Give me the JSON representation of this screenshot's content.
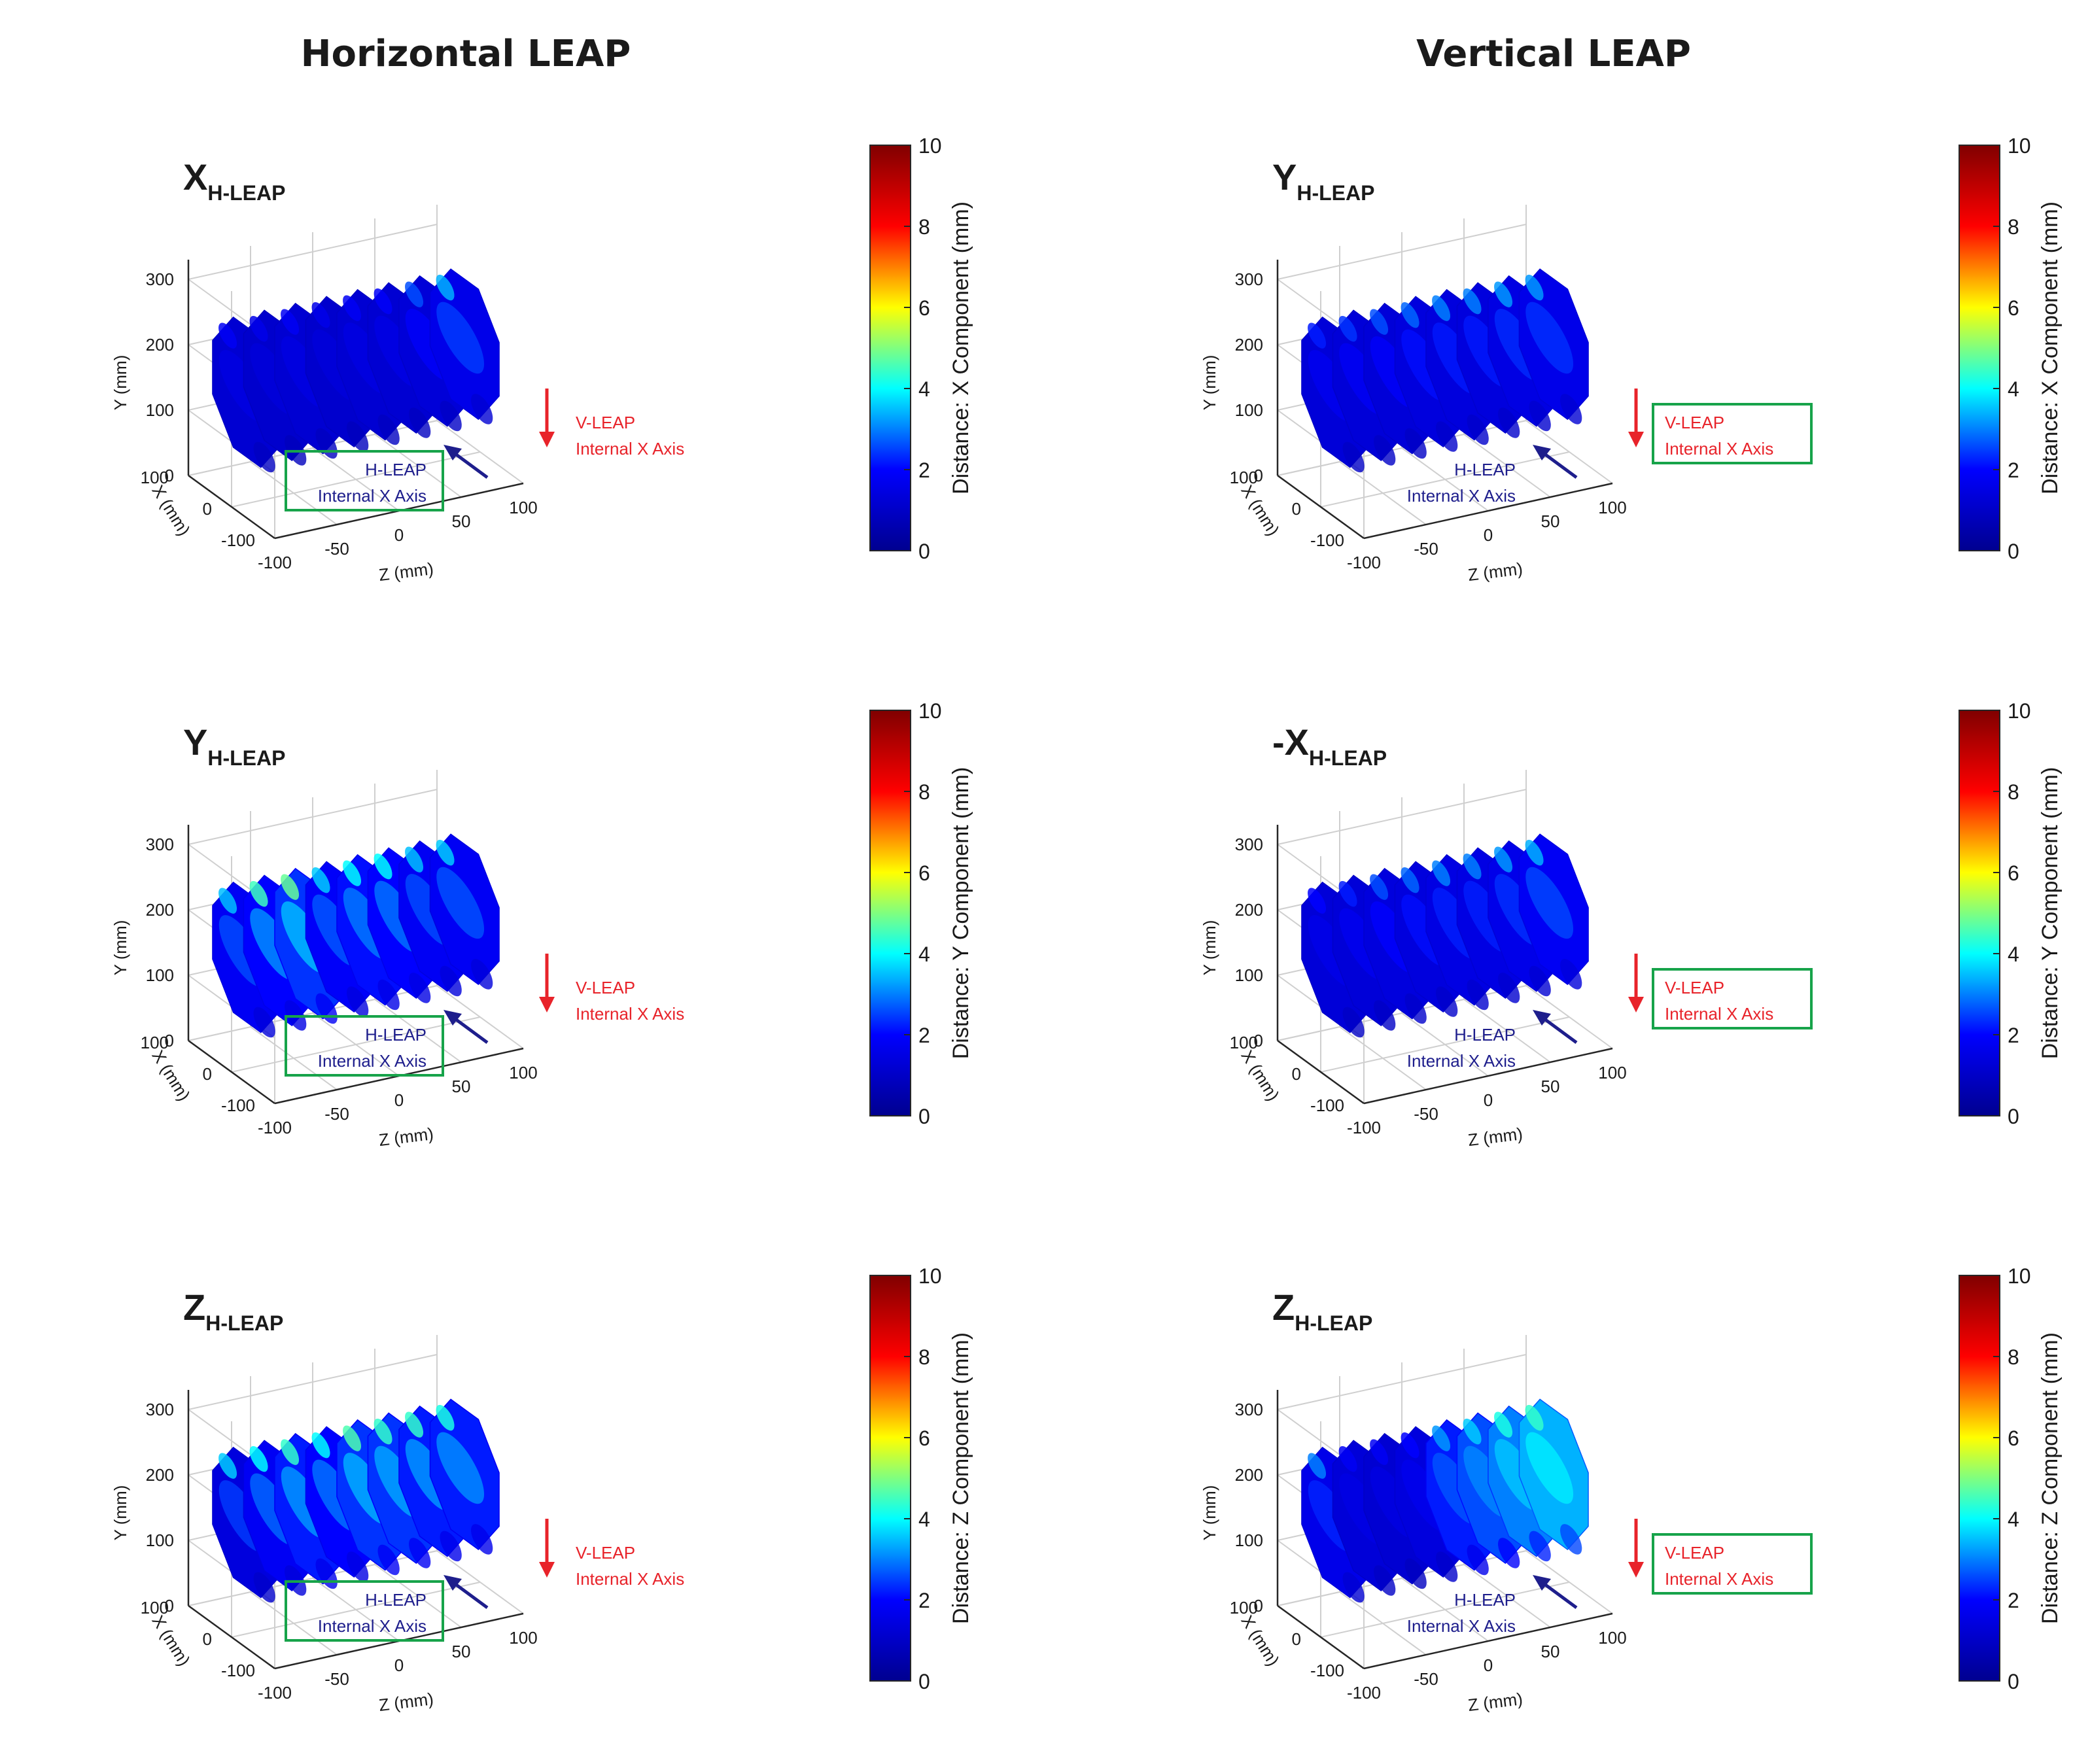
{
  "headings": {
    "left": "Horizontal LEAP",
    "right": "Vertical LEAP"
  },
  "colormap": {
    "name": "jet",
    "stops": [
      "#00008f",
      "#0000ff",
      "#00ffff",
      "#ffff00",
      "#ff0000",
      "#800000"
    ]
  },
  "chart_data": [
    {
      "type": "surface",
      "column": "Horizontal LEAP",
      "panel_label": {
        "main": "X",
        "sub": "H-LEAP"
      },
      "xlabel": "Z (mm)",
      "ylabel": "Y (mm)",
      "zlabel": "X (mm)",
      "z_ticks": [
        "-100",
        "-50",
        "0",
        "50",
        "100"
      ],
      "y_ticks": [
        "0",
        "100",
        "200",
        "300"
      ],
      "x_ticks": [
        "100",
        "0",
        "-100"
      ],
      "slices_at_z_mm": [
        -87.5,
        -62.5,
        -37.5,
        -12.5,
        12.5,
        37.5,
        62.5,
        87.5
      ],
      "slice_typical_distance_mm": [
        1.2,
        1.1,
        1.2,
        1.1,
        1.2,
        1.2,
        1.3,
        1.6
      ],
      "slice_max_distance_mm": [
        1.8,
        1.6,
        1.8,
        1.6,
        1.8,
        1.9,
        2.6,
        3.4
      ],
      "colorbar": {
        "label": "Distance: X Component (mm)",
        "range": [
          0,
          10
        ],
        "ticks": [
          "0",
          "2",
          "4",
          "6",
          "8",
          "10"
        ]
      },
      "annotations": {
        "h_leap": {
          "line1": "H-LEAP",
          "line2": "Internal X Axis",
          "boxed": true
        },
        "v_leap": {
          "line1": "V-LEAP",
          "line2": "Internal X Axis",
          "boxed": false
        }
      }
    },
    {
      "type": "surface",
      "column": "Vertical LEAP",
      "panel_label": {
        "main": "Y",
        "sub": "H-LEAP"
      },
      "xlabel": "Z (mm)",
      "ylabel": "Y (mm)",
      "zlabel": "X (mm)",
      "z_ticks": [
        "-100",
        "-50",
        "0",
        "50",
        "100"
      ],
      "y_ticks": [
        "0",
        "100",
        "200",
        "300"
      ],
      "x_ticks": [
        "100",
        "0",
        "-100"
      ],
      "slices_at_z_mm": [
        -87.5,
        -62.5,
        -37.5,
        -12.5,
        12.5,
        37.5,
        62.5,
        87.5
      ],
      "slice_typical_distance_mm": [
        1.3,
        1.3,
        1.3,
        1.4,
        1.4,
        1.4,
        1.5,
        1.6
      ],
      "slice_max_distance_mm": [
        2.2,
        2.4,
        2.6,
        2.8,
        3.0,
        3.0,
        3.2,
        3.2
      ],
      "colorbar": {
        "label": "Distance: X Component (mm)",
        "range": [
          0,
          10
        ],
        "ticks": [
          "0",
          "2",
          "4",
          "6",
          "8",
          "10"
        ]
      },
      "annotations": {
        "h_leap": {
          "line1": "H-LEAP",
          "line2": "Internal X Axis",
          "boxed": false
        },
        "v_leap": {
          "line1": "V-LEAP",
          "line2": "Internal X Axis",
          "boxed": true
        }
      }
    },
    {
      "type": "surface",
      "column": "Horizontal LEAP",
      "panel_label": {
        "main": "Y",
        "sub": "H-LEAP"
      },
      "xlabel": "Z (mm)",
      "ylabel": "Y (mm)",
      "zlabel": "X (mm)",
      "z_ticks": [
        "-100",
        "-50",
        "0",
        "50",
        "100"
      ],
      "y_ticks": [
        "0",
        "100",
        "200",
        "300"
      ],
      "x_ticks": [
        "100",
        "0",
        "-100"
      ],
      "slices_at_z_mm": [
        -87.5,
        -62.5,
        -37.5,
        -12.5,
        12.5,
        37.5,
        62.5,
        87.5
      ],
      "slice_typical_distance_mm": [
        1.8,
        2.0,
        2.4,
        1.9,
        2.1,
        2.0,
        1.8,
        1.8
      ],
      "slice_max_distance_mm": [
        3.5,
        4.5,
        4.8,
        3.6,
        4.0,
        4.0,
        3.5,
        3.6
      ],
      "colorbar": {
        "label": "Distance: Y Component (mm)",
        "range": [
          0,
          10
        ],
        "ticks": [
          "0",
          "2",
          "4",
          "6",
          "8",
          "10"
        ]
      },
      "annotations": {
        "h_leap": {
          "line1": "H-LEAP",
          "line2": "Internal X Axis",
          "boxed": true
        },
        "v_leap": {
          "line1": "V-LEAP",
          "line2": "Internal X Axis",
          "boxed": false
        }
      }
    },
    {
      "type": "surface",
      "column": "Vertical LEAP",
      "panel_label": {
        "main": "-X",
        "sub": "H-LEAP"
      },
      "xlabel": "Z (mm)",
      "ylabel": "Y (mm)",
      "zlabel": "X (mm)",
      "z_ticks": [
        "-100",
        "-50",
        "0",
        "50",
        "100"
      ],
      "y_ticks": [
        "0",
        "100",
        "200",
        "300"
      ],
      "x_ticks": [
        "100",
        "0",
        "-100"
      ],
      "slices_at_z_mm": [
        -87.5,
        -62.5,
        -37.5,
        -12.5,
        12.5,
        37.5,
        62.5,
        87.5
      ],
      "slice_typical_distance_mm": [
        1.3,
        1.3,
        1.4,
        1.4,
        1.5,
        1.5,
        1.6,
        1.8
      ],
      "slice_max_distance_mm": [
        2.0,
        2.2,
        2.6,
        2.8,
        3.0,
        3.0,
        3.2,
        3.4
      ],
      "colorbar": {
        "label": "Distance: Y Component (mm)",
        "range": [
          0,
          10
        ],
        "ticks": [
          "0",
          "2",
          "4",
          "6",
          "8",
          "10"
        ]
      },
      "annotations": {
        "h_leap": {
          "line1": "H-LEAP",
          "line2": "Internal X Axis",
          "boxed": false
        },
        "v_leap": {
          "line1": "V-LEAP",
          "line2": "Internal X Axis",
          "boxed": true
        }
      }
    },
    {
      "type": "surface",
      "column": "Horizontal LEAP",
      "panel_label": {
        "main": "Z",
        "sub": "H-LEAP"
      },
      "xlabel": "Z (mm)",
      "ylabel": "Y (mm)",
      "zlabel": "X (mm)",
      "z_ticks": [
        "-100",
        "-50",
        "0",
        "50",
        "100"
      ],
      "y_ticks": [
        "0",
        "100",
        "200",
        "300"
      ],
      "x_ticks": [
        "100",
        "0",
        "-100"
      ],
      "slices_at_z_mm": [
        -87.5,
        -62.5,
        -37.5,
        -12.5,
        12.5,
        37.5,
        62.5,
        87.5
      ],
      "slice_typical_distance_mm": [
        1.4,
        1.8,
        2.2,
        2.0,
        2.4,
        2.4,
        2.2,
        2.2
      ],
      "slice_max_distance_mm": [
        3.6,
        4.0,
        4.4,
        4.0,
        4.6,
        4.4,
        4.4,
        4.2
      ],
      "colorbar": {
        "label": "Distance: Z Component (mm)",
        "range": [
          0,
          10
        ],
        "ticks": [
          "0",
          "2",
          "4",
          "6",
          "8",
          "10"
        ]
      },
      "annotations": {
        "h_leap": {
          "line1": "H-LEAP",
          "line2": "Internal X Axis",
          "boxed": true
        },
        "v_leap": {
          "line1": "V-LEAP",
          "line2": "Internal X Axis",
          "boxed": false
        }
      }
    },
    {
      "type": "surface",
      "column": "Vertical LEAP",
      "panel_label": {
        "main": "Z",
        "sub": "H-LEAP"
      },
      "xlabel": "Z (mm)",
      "ylabel": "Y (mm)",
      "zlabel": "X (mm)",
      "z_ticks": [
        "-100",
        "-50",
        "0",
        "50",
        "100"
      ],
      "y_ticks": [
        "0",
        "100",
        "200",
        "300"
      ],
      "x_ticks": [
        "100",
        "0",
        "-100"
      ],
      "slices_at_z_mm": [
        -87.5,
        -62.5,
        -37.5,
        -12.5,
        12.5,
        37.5,
        62.5,
        87.5
      ],
      "slice_typical_distance_mm": [
        1.6,
        1.3,
        1.2,
        1.4,
        2.2,
        2.6,
        3.0,
        3.4
      ],
      "slice_max_distance_mm": [
        3.0,
        1.8,
        1.8,
        2.0,
        3.2,
        3.6,
        4.2,
        4.4
      ],
      "colorbar": {
        "label": "Distance: Z Component (mm)",
        "range": [
          0,
          10
        ],
        "ticks": [
          "0",
          "2",
          "4",
          "6",
          "8",
          "10"
        ]
      },
      "annotations": {
        "h_leap": {
          "line1": "H-LEAP",
          "line2": "Internal X Axis",
          "boxed": false
        },
        "v_leap": {
          "line1": "V-LEAP",
          "line2": "Internal X Axis",
          "boxed": true
        }
      }
    }
  ]
}
